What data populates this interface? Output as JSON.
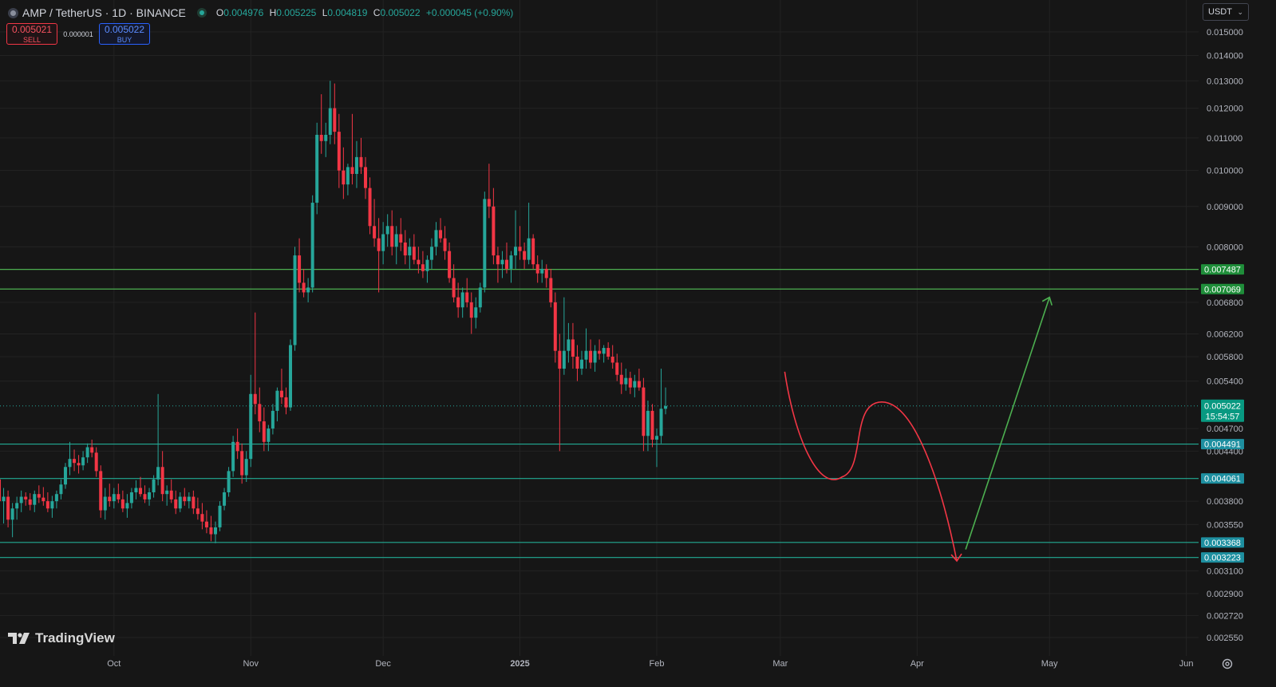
{
  "header": {
    "symbol": "AMP / TetherUS · 1D · BINANCE",
    "ohlc": [
      {
        "key": "O",
        "value": "0.004976"
      },
      {
        "key": "H",
        "value": "0.005225"
      },
      {
        "key": "L",
        "value": "0.004819"
      },
      {
        "key": "C",
        "value": "0.005022"
      }
    ],
    "change": "+0.000045 (+0.90%)"
  },
  "trade": {
    "sell_price": "0.005021",
    "sell_label": "SELL",
    "spread": "0.000001",
    "buy_price": "0.005022",
    "buy_label": "BUY"
  },
  "currency_selector": "USDT",
  "branding": "TradingView",
  "colors": {
    "up": "#26a69a",
    "down": "#f23645",
    "support": "#22ab94",
    "resistance": "#4caf50",
    "projection_down": "#f23645",
    "projection_up": "#4caf50"
  },
  "chart_data": {
    "type": "candlestick",
    "scale": "log",
    "ylim": [
      0.0024,
      0.0158
    ],
    "y_ticks": [
      "0.015000",
      "0.014000",
      "0.013000",
      "0.012000",
      "0.011000",
      "0.010000",
      "0.009000",
      "0.008000",
      "0.006800",
      "0.006200",
      "0.005800",
      "0.005400",
      "0.004700",
      "0.004400",
      "0.003800",
      "0.003550",
      "0.003100",
      "0.002900",
      "0.002720",
      "0.002550"
    ],
    "x_ticks": [
      "Oct",
      "Nov",
      "Dec",
      "2025",
      "Feb",
      "Mar",
      "Apr",
      "May",
      "Jun"
    ],
    "start_date": "2024-09-04",
    "candles": [
      [
        0.00395,
        0.00409,
        0.0038,
        0.00405
      ],
      [
        0.00405,
        0.00412,
        0.00372,
        0.0038
      ],
      [
        0.0038,
        0.00395,
        0.00356,
        0.00385
      ],
      [
        0.00385,
        0.00392,
        0.00352,
        0.0036
      ],
      [
        0.0036,
        0.00378,
        0.00342,
        0.00372
      ],
      [
        0.00372,
        0.00385,
        0.0036,
        0.00378
      ],
      [
        0.00378,
        0.00392,
        0.00368,
        0.00385
      ],
      [
        0.00385,
        0.0039,
        0.00375,
        0.00382
      ],
      [
        0.00382,
        0.00389,
        0.0037,
        0.00376
      ],
      [
        0.00376,
        0.00392,
        0.00368,
        0.00388
      ],
      [
        0.00388,
        0.00398,
        0.00378,
        0.00384
      ],
      [
        0.00384,
        0.00396,
        0.00375,
        0.0038
      ],
      [
        0.0038,
        0.0039,
        0.00368,
        0.00372
      ],
      [
        0.00372,
        0.00386,
        0.00362,
        0.0038
      ],
      [
        0.0038,
        0.00392,
        0.00372,
        0.00388
      ],
      [
        0.00388,
        0.00405,
        0.00382,
        0.00399
      ],
      [
        0.00399,
        0.00425,
        0.00394,
        0.0042
      ],
      [
        0.0042,
        0.00452,
        0.0041,
        0.0043
      ],
      [
        0.0043,
        0.00442,
        0.00415,
        0.00425
      ],
      [
        0.00425,
        0.00435,
        0.00412,
        0.00422
      ],
      [
        0.00422,
        0.0044,
        0.00416,
        0.00432
      ],
      [
        0.00432,
        0.0045,
        0.00425,
        0.00445
      ],
      [
        0.00445,
        0.00455,
        0.00432,
        0.00438
      ],
      [
        0.00438,
        0.00445,
        0.00408,
        0.00415
      ],
      [
        0.00415,
        0.00422,
        0.00362,
        0.0037
      ],
      [
        0.0037,
        0.00395,
        0.0036,
        0.00385
      ],
      [
        0.00385,
        0.004,
        0.00374,
        0.0038
      ],
      [
        0.0038,
        0.00395,
        0.00372,
        0.00388
      ],
      [
        0.00388,
        0.004,
        0.00378,
        0.00382
      ],
      [
        0.00382,
        0.00392,
        0.00368,
        0.00372
      ],
      [
        0.00372,
        0.00388,
        0.00362,
        0.00378
      ],
      [
        0.00378,
        0.00395,
        0.00372,
        0.0039
      ],
      [
        0.0039,
        0.00404,
        0.00382,
        0.00395
      ],
      [
        0.00395,
        0.00408,
        0.00385,
        0.00388
      ],
      [
        0.00388,
        0.00398,
        0.00378,
        0.00382
      ],
      [
        0.00382,
        0.00395,
        0.00375,
        0.0039
      ],
      [
        0.0039,
        0.0041,
        0.00384,
        0.00405
      ],
      [
        0.00405,
        0.0052,
        0.00398,
        0.0042
      ],
      [
        0.0042,
        0.0044,
        0.0038,
        0.00388
      ],
      [
        0.00388,
        0.00398,
        0.00375,
        0.00392
      ],
      [
        0.00392,
        0.00405,
        0.00378,
        0.00382
      ],
      [
        0.00382,
        0.00392,
        0.00366,
        0.00372
      ],
      [
        0.00372,
        0.0039,
        0.00368,
        0.00385
      ],
      [
        0.00385,
        0.00395,
        0.00375,
        0.0038
      ],
      [
        0.0038,
        0.0039,
        0.00372,
        0.00385
      ],
      [
        0.00385,
        0.00392,
        0.00366,
        0.00372
      ],
      [
        0.00372,
        0.00384,
        0.0036,
        0.00366
      ],
      [
        0.00366,
        0.00378,
        0.0035,
        0.00358
      ],
      [
        0.00358,
        0.0037,
        0.00346,
        0.00352
      ],
      [
        0.00352,
        0.00364,
        0.00338,
        0.00345
      ],
      [
        0.00345,
        0.00358,
        0.00336,
        0.00352
      ],
      [
        0.00352,
        0.0038,
        0.00348,
        0.00375
      ],
      [
        0.00375,
        0.00395,
        0.0037,
        0.0039
      ],
      [
        0.0039,
        0.0042,
        0.00385,
        0.00415
      ],
      [
        0.00415,
        0.0046,
        0.00408,
        0.00452
      ],
      [
        0.00452,
        0.0047,
        0.0043,
        0.0044
      ],
      [
        0.0044,
        0.0045,
        0.004,
        0.0041
      ],
      [
        0.0041,
        0.0044,
        0.00402,
        0.0043
      ],
      [
        0.0043,
        0.0055,
        0.0042,
        0.0052
      ],
      [
        0.0052,
        0.0066,
        0.0049,
        0.00505
      ],
      [
        0.00505,
        0.0053,
        0.00465,
        0.0048
      ],
      [
        0.0048,
        0.005,
        0.0044,
        0.00452
      ],
      [
        0.00452,
        0.00475,
        0.0044,
        0.0047
      ],
      [
        0.0047,
        0.00505,
        0.00462,
        0.00495
      ],
      [
        0.00495,
        0.0053,
        0.0048,
        0.00525
      ],
      [
        0.00525,
        0.0056,
        0.00505,
        0.00515
      ],
      [
        0.00515,
        0.0053,
        0.0049,
        0.005
      ],
      [
        0.005,
        0.0061,
        0.00495,
        0.006
      ],
      [
        0.006,
        0.008,
        0.0059,
        0.0078
      ],
      [
        0.0078,
        0.0082,
        0.007,
        0.0072
      ],
      [
        0.0072,
        0.0075,
        0.0069,
        0.007
      ],
      [
        0.007,
        0.0073,
        0.0068,
        0.0071
      ],
      [
        0.0071,
        0.0093,
        0.007,
        0.0091
      ],
      [
        0.0091,
        0.0115,
        0.0088,
        0.0111
      ],
      [
        0.0111,
        0.0125,
        0.0105,
        0.0109
      ],
      [
        0.0109,
        0.0115,
        0.0104,
        0.0111
      ],
      [
        0.0111,
        0.013,
        0.0108,
        0.012
      ],
      [
        0.012,
        0.0129,
        0.0108,
        0.0112
      ],
      [
        0.0112,
        0.0118,
        0.0095,
        0.01
      ],
      [
        0.01,
        0.0107,
        0.0092,
        0.0096
      ],
      [
        0.0096,
        0.0102,
        0.0093,
        0.0101
      ],
      [
        0.0101,
        0.0118,
        0.0096,
        0.0099
      ],
      [
        0.0099,
        0.0109,
        0.0095,
        0.0104
      ],
      [
        0.0104,
        0.011,
        0.0099,
        0.0101
      ],
      [
        0.0101,
        0.0104,
        0.0092,
        0.0095
      ],
      [
        0.0095,
        0.0098,
        0.0083,
        0.0085
      ],
      [
        0.0085,
        0.0092,
        0.008,
        0.0082
      ],
      [
        0.0082,
        0.0087,
        0.007,
        0.0079
      ],
      [
        0.0079,
        0.0086,
        0.0076,
        0.0083
      ],
      [
        0.0083,
        0.0088,
        0.008,
        0.0085
      ],
      [
        0.0085,
        0.0089,
        0.0078,
        0.008
      ],
      [
        0.008,
        0.0085,
        0.0076,
        0.0083
      ],
      [
        0.0083,
        0.0087,
        0.0079,
        0.0081
      ],
      [
        0.0081,
        0.0084,
        0.0076,
        0.0078
      ],
      [
        0.0078,
        0.0082,
        0.0075,
        0.008
      ],
      [
        0.008,
        0.0083,
        0.0076,
        0.0077
      ],
      [
        0.0077,
        0.008,
        0.0074,
        0.0076
      ],
      [
        0.0076,
        0.0079,
        0.0073,
        0.00745
      ],
      [
        0.00745,
        0.0078,
        0.0072,
        0.0077
      ],
      [
        0.0077,
        0.0082,
        0.0075,
        0.008
      ],
      [
        0.008,
        0.0086,
        0.0078,
        0.0084
      ],
      [
        0.0084,
        0.0087,
        0.0081,
        0.0082
      ],
      [
        0.0082,
        0.0085,
        0.0077,
        0.0079
      ],
      [
        0.0079,
        0.0081,
        0.0072,
        0.0073
      ],
      [
        0.0073,
        0.0076,
        0.0068,
        0.0069
      ],
      [
        0.0069,
        0.0072,
        0.0065,
        0.0067
      ],
      [
        0.0067,
        0.0071,
        0.0065,
        0.007
      ],
      [
        0.007,
        0.0073,
        0.0067,
        0.0068
      ],
      [
        0.0068,
        0.007,
        0.0062,
        0.0065
      ],
      [
        0.0065,
        0.0069,
        0.0063,
        0.0067
      ],
      [
        0.0067,
        0.0072,
        0.0066,
        0.0071
      ],
      [
        0.0071,
        0.0094,
        0.007,
        0.0092
      ],
      [
        0.0092,
        0.0102,
        0.0087,
        0.009
      ],
      [
        0.009,
        0.0095,
        0.0076,
        0.0078
      ],
      [
        0.0078,
        0.008,
        0.0072,
        0.0076
      ],
      [
        0.0076,
        0.0079,
        0.0073,
        0.0077
      ],
      [
        0.0077,
        0.0081,
        0.0074,
        0.0075
      ],
      [
        0.0075,
        0.0079,
        0.0072,
        0.0078
      ],
      [
        0.0078,
        0.0089,
        0.0075,
        0.008
      ],
      [
        0.008,
        0.0085,
        0.0077,
        0.0079
      ],
      [
        0.0079,
        0.0081,
        0.0075,
        0.0077
      ],
      [
        0.0077,
        0.0091,
        0.0076,
        0.0082
      ],
      [
        0.0082,
        0.0083,
        0.0075,
        0.0076
      ],
      [
        0.0076,
        0.0078,
        0.0072,
        0.0074
      ],
      [
        0.0074,
        0.0077,
        0.0072,
        0.0075
      ],
      [
        0.0075,
        0.0076,
        0.0071,
        0.0073
      ],
      [
        0.0073,
        0.0075,
        0.0067,
        0.0068
      ],
      [
        0.0068,
        0.007,
        0.0057,
        0.0059
      ],
      [
        0.0059,
        0.0062,
        0.0044,
        0.0056
      ],
      [
        0.0056,
        0.0069,
        0.0055,
        0.0059
      ],
      [
        0.0059,
        0.0064,
        0.0057,
        0.0061
      ],
      [
        0.0061,
        0.0064,
        0.0056,
        0.0058
      ],
      [
        0.0058,
        0.006,
        0.0054,
        0.0056
      ],
      [
        0.0056,
        0.0059,
        0.0055,
        0.00575
      ],
      [
        0.00575,
        0.0063,
        0.0056,
        0.0059
      ],
      [
        0.0059,
        0.0061,
        0.0056,
        0.0057
      ],
      [
        0.0057,
        0.006,
        0.00555,
        0.0059
      ],
      [
        0.0059,
        0.0061,
        0.00575,
        0.00585
      ],
      [
        0.00585,
        0.006,
        0.0057,
        0.00595
      ],
      [
        0.00595,
        0.00605,
        0.00575,
        0.0058
      ],
      [
        0.0058,
        0.006,
        0.0056,
        0.0057
      ],
      [
        0.0057,
        0.00585,
        0.0054,
        0.0055
      ],
      [
        0.0055,
        0.0057,
        0.0052,
        0.00535
      ],
      [
        0.00535,
        0.0056,
        0.00525,
        0.00545
      ],
      [
        0.00545,
        0.00555,
        0.0052,
        0.0053
      ],
      [
        0.0053,
        0.0055,
        0.00515,
        0.0054
      ],
      [
        0.0054,
        0.0056,
        0.00525,
        0.0053
      ],
      [
        0.0053,
        0.00545,
        0.0044,
        0.0046
      ],
      [
        0.0046,
        0.0051,
        0.0044,
        0.00495
      ],
      [
        0.00495,
        0.00505,
        0.00445,
        0.00455
      ],
      [
        0.00455,
        0.0047,
        0.0042,
        0.0046
      ],
      [
        0.0046,
        0.0056,
        0.0045,
        0.00498
      ],
      [
        0.00498,
        0.0053,
        0.0049,
        0.00502
      ]
    ],
    "horizontal_levels": [
      {
        "value": 0.007487,
        "label": "0.007487",
        "kind": "resistance"
      },
      {
        "value": 0.007069,
        "label": "0.007069",
        "kind": "resistance"
      },
      {
        "value": 0.004491,
        "label": "0.004491",
        "kind": "support"
      },
      {
        "value": 0.004061,
        "label": "0.004061",
        "kind": "support"
      },
      {
        "value": 0.003368,
        "label": "0.003368",
        "kind": "support"
      },
      {
        "value": 0.003223,
        "label": "0.003223",
        "kind": "support"
      }
    ],
    "last_price": {
      "value": 0.005022,
      "label": "0.005022",
      "countdown": "15:54:57"
    },
    "projection": {
      "down_path": [
        {
          "date": "2025-03-02",
          "price": 0.00555
        },
        {
          "date": "2025-03-15",
          "price": 0.00408
        },
        {
          "date": "2025-03-24",
          "price": 0.00508
        },
        {
          "date": "2025-04-10",
          "price": 0.00319
        }
      ],
      "up_path": [
        {
          "date": "2025-04-12",
          "price": 0.0033
        },
        {
          "date": "2025-05-01",
          "price": 0.0069
        }
      ]
    }
  }
}
